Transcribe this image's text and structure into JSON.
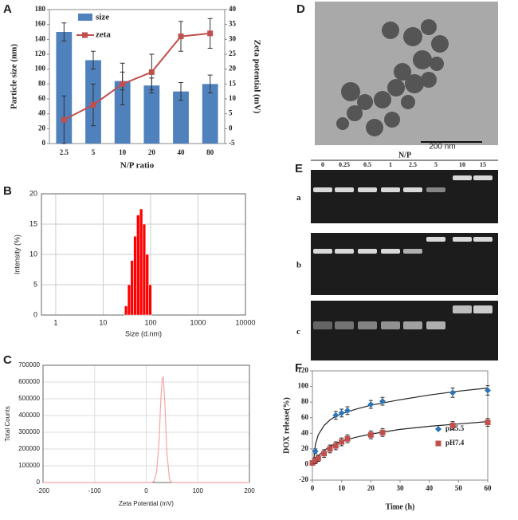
{
  "chart_data": [
    {
      "type": "bar_line",
      "panel": "A",
      "xlabel": "N/P ratio",
      "ylabel": "Particle size (nm)",
      "y2label": "Zeta potential (mV)",
      "categories": [
        "2.5",
        "5",
        "10",
        "20",
        "40",
        "80"
      ],
      "series": [
        {
          "name": "size",
          "color": "#4f81bd",
          "values": [
            150,
            112,
            84,
            78,
            70,
            80
          ],
          "errors": [
            12,
            12,
            12,
            10,
            12,
            12
          ]
        },
        {
          "name": "zeta",
          "color": "#c0504d",
          "axis": "y2",
          "values": [
            3,
            8,
            15,
            19,
            31,
            32
          ],
          "errors": [
            8,
            7,
            7,
            6,
            5,
            5
          ]
        }
      ],
      "ylim": [
        0,
        180
      ],
      "yticks": [
        0,
        20,
        40,
        60,
        80,
        100,
        120,
        140,
        160,
        180
      ],
      "y2lim": [
        -5,
        40
      ],
      "y2ticks": [
        -5,
        0,
        5,
        10,
        15,
        20,
        25,
        30,
        35,
        40
      ]
    },
    {
      "type": "histogram",
      "panel": "B",
      "xlabel": "Size (d.nm)",
      "ylabel": "Intensity (%)",
      "log_x": true,
      "grid": true,
      "color": "#ff0000",
      "bins": [
        28.2,
        32.7,
        37.8,
        43.8,
        50.7,
        58.8,
        68.1,
        78.8,
        91.3,
        105.7
      ],
      "counts": [
        1.5,
        5,
        9,
        13,
        16.5,
        17.5,
        15,
        10,
        5
      ],
      "xlim": [
        0.5,
        10000
      ],
      "xticks": [
        1,
        10,
        100,
        1000,
        10000
      ],
      "ylim": [
        0,
        20
      ],
      "yticks": [
        0,
        5,
        10,
        15,
        20
      ]
    },
    {
      "type": "line",
      "panel": "C",
      "xlabel": "Zeta Potential (mV)",
      "ylabel": "Total Counts",
      "grid": true,
      "color": "#f4a6a6",
      "x": [
        -200,
        10,
        15,
        20,
        25,
        28,
        31,
        33,
        36,
        40,
        45,
        50,
        200
      ],
      "values": [
        0,
        0,
        8000,
        60000,
        250000,
        480000,
        620000,
        630000,
        480000,
        180000,
        20000,
        0,
        0
      ],
      "xlim": [
        -200,
        200
      ],
      "xticks": [
        -200,
        -100,
        0,
        100,
        200
      ],
      "ylim": [
        0,
        700000
      ],
      "yticks": [
        0,
        100000,
        200000,
        300000,
        400000,
        500000,
        600000,
        700000
      ]
    },
    {
      "type": "scatter",
      "panel": "F",
      "xlabel": "Time (h)",
      "ylabel": "DOX release(%)",
      "series": [
        {
          "name": "pH5.5",
          "color": "#2e75b6",
          "marker": "diamond",
          "x": [
            1,
            8,
            10,
            12,
            20,
            24,
            48,
            60
          ],
          "values": [
            17,
            63,
            66,
            69,
            77,
            81,
            92,
            95
          ],
          "errors": [
            3,
            5,
            5,
            5,
            5,
            5,
            6,
            6
          ]
        },
        {
          "name": "pH7.4",
          "color": "#c0504d",
          "marker": "square",
          "x": [
            0,
            1,
            2,
            4,
            6,
            8,
            10,
            12,
            20,
            24,
            48,
            60
          ],
          "values": [
            2,
            5,
            8,
            14,
            20,
            24,
            29,
            33,
            38,
            41,
            50,
            54
          ],
          "errors": [
            3,
            4,
            4,
            5,
            5,
            5,
            5,
            5,
            5,
            5,
            5,
            5
          ]
        }
      ],
      "fits": [
        {
          "x": [
            0.3,
            1,
            2,
            4,
            6,
            8,
            10,
            15,
            20,
            30,
            40,
            50,
            60
          ],
          "values": [
            0,
            25,
            38,
            50,
            57,
            62,
            65,
            71,
            76,
            83,
            89,
            94,
            98
          ]
        },
        {
          "x": [
            0.3,
            1,
            2,
            4,
            6,
            8,
            10,
            15,
            20,
            30,
            40,
            50,
            60
          ],
          "values": [
            0,
            5,
            11,
            18,
            23,
            27,
            30,
            35,
            39,
            45,
            49,
            52,
            55
          ]
        }
      ],
      "xlim": [
        0,
        60
      ],
      "xticks": [
        0,
        10,
        20,
        30,
        40,
        50,
        60
      ],
      "ylim": [
        -20,
        120
      ],
      "yticks": [
        -20,
        0,
        20,
        40,
        60,
        80,
        100,
        120
      ]
    }
  ],
  "tem": {
    "panel": "D",
    "scale": "200 nm"
  },
  "gel": {
    "panel": "E",
    "title": "N/P",
    "lanes": [
      "0",
      "0.25",
      "0.5",
      "1",
      "2.5",
      "5",
      "10",
      "15"
    ],
    "rows": [
      "a",
      "b",
      "c"
    ]
  }
}
